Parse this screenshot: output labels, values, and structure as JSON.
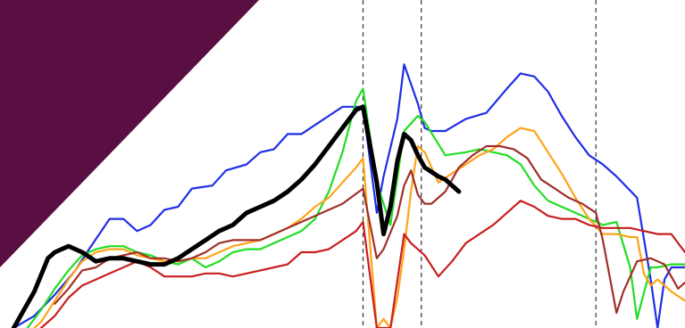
{
  "colors": {
    "background": "#ffffff",
    "corner": "#5a0f42",
    "guide": "#444444"
  },
  "chart_data": {
    "type": "line",
    "title": "",
    "xlabel": "",
    "ylabel": "",
    "grid": false,
    "legend": "none",
    "xlim": [
      0,
      100
    ],
    "ylim": [
      0,
      100
    ],
    "vlines": [
      53,
      61.5,
      87
    ],
    "series": [
      {
        "color": "#1f2ee6",
        "width": 2.2,
        "points": [
          [
            2,
            0
          ],
          [
            5,
            4
          ],
          [
            8,
            11
          ],
          [
            11,
            19
          ],
          [
            13,
            26
          ],
          [
            16,
            36
          ],
          [
            18,
            36
          ],
          [
            20,
            32
          ],
          [
            22,
            34
          ],
          [
            24,
            39
          ],
          [
            26,
            40
          ],
          [
            28,
            46
          ],
          [
            31,
            47
          ],
          [
            33,
            52
          ],
          [
            36,
            54
          ],
          [
            38,
            58
          ],
          [
            40,
            59
          ],
          [
            42,
            64
          ],
          [
            44,
            64
          ],
          [
            46,
            67
          ],
          [
            48,
            70
          ],
          [
            50,
            73
          ],
          [
            52,
            73
          ],
          [
            53,
            73
          ],
          [
            55,
            38
          ],
          [
            56,
            50
          ],
          [
            58,
            69
          ],
          [
            59,
            87
          ],
          [
            61,
            74
          ],
          [
            62,
            66
          ],
          [
            63,
            65
          ],
          [
            65,
            65
          ],
          [
            68,
            69
          ],
          [
            71,
            71
          ],
          [
            74,
            79
          ],
          [
            76,
            84
          ],
          [
            78,
            83
          ],
          [
            80,
            78
          ],
          [
            82,
            70
          ],
          [
            84,
            63
          ],
          [
            86,
            57
          ],
          [
            88,
            54
          ],
          [
            90,
            50
          ],
          [
            93,
            43
          ],
          [
            95,
            16
          ],
          [
            96,
            0
          ],
          [
            97,
            16
          ],
          [
            98,
            20
          ],
          [
            100,
            20
          ]
        ]
      },
      {
        "color": "#22dd22",
        "width": 2.2,
        "points": [
          [
            4,
            0
          ],
          [
            6,
            6
          ],
          [
            8,
            13
          ],
          [
            10,
            19
          ],
          [
            12,
            24
          ],
          [
            14,
            26
          ],
          [
            16,
            27
          ],
          [
            18,
            27
          ],
          [
            20,
            25
          ],
          [
            22,
            24
          ],
          [
            24,
            22
          ],
          [
            26,
            21
          ],
          [
            28,
            23
          ],
          [
            30,
            20
          ],
          [
            32,
            22
          ],
          [
            34,
            25
          ],
          [
            36,
            26
          ],
          [
            38,
            26
          ],
          [
            40,
            28
          ],
          [
            42,
            30
          ],
          [
            44,
            32
          ],
          [
            46,
            36
          ],
          [
            48,
            45
          ],
          [
            50,
            58
          ],
          [
            52,
            75
          ],
          [
            53,
            79
          ],
          [
            55,
            48
          ],
          [
            57,
            34
          ],
          [
            59,
            65
          ],
          [
            61,
            70
          ],
          [
            62,
            68
          ],
          [
            65,
            57
          ],
          [
            68,
            58
          ],
          [
            70,
            59
          ],
          [
            72,
            58
          ],
          [
            74,
            57
          ],
          [
            76,
            54
          ],
          [
            78,
            47
          ],
          [
            80,
            42
          ],
          [
            82,
            40
          ],
          [
            84,
            38
          ],
          [
            86,
            36
          ],
          [
            88,
            34
          ],
          [
            90,
            35
          ],
          [
            92,
            20
          ],
          [
            93,
            3
          ],
          [
            95,
            20
          ],
          [
            96,
            20
          ],
          [
            98,
            21
          ],
          [
            100,
            21
          ]
        ]
      },
      {
        "color": "#ffa319",
        "width": 2.2,
        "points": [
          [
            5,
            0
          ],
          [
            6,
            2
          ],
          [
            8,
            9
          ],
          [
            10,
            16
          ],
          [
            12,
            22
          ],
          [
            14,
            25
          ],
          [
            16,
            26
          ],
          [
            18,
            26
          ],
          [
            20,
            24
          ],
          [
            22,
            23
          ],
          [
            24,
            22
          ],
          [
            26,
            22
          ],
          [
            28,
            23
          ],
          [
            30,
            23
          ],
          [
            32,
            25
          ],
          [
            34,
            27
          ],
          [
            36,
            28
          ],
          [
            38,
            29
          ],
          [
            40,
            31
          ],
          [
            42,
            33
          ],
          [
            44,
            36
          ],
          [
            46,
            40
          ],
          [
            48,
            43
          ],
          [
            50,
            48
          ],
          [
            52,
            53
          ],
          [
            53,
            56
          ],
          [
            55,
            0
          ],
          [
            56,
            3
          ],
          [
            57,
            0
          ],
          [
            58,
            10
          ],
          [
            59,
            26
          ],
          [
            60,
            45
          ],
          [
            61,
            60
          ],
          [
            62,
            58
          ],
          [
            63,
            53
          ],
          [
            64,
            48
          ],
          [
            66,
            51
          ],
          [
            68,
            54
          ],
          [
            70,
            57
          ],
          [
            72,
            59
          ],
          [
            74,
            63
          ],
          [
            76,
            66
          ],
          [
            78,
            65
          ],
          [
            80,
            58
          ],
          [
            82,
            51
          ],
          [
            84,
            43
          ],
          [
            86,
            36
          ],
          [
            88,
            31
          ],
          [
            90,
            31
          ],
          [
            92,
            30
          ],
          [
            93,
            30
          ],
          [
            94,
            18
          ],
          [
            95,
            14
          ],
          [
            96,
            16
          ],
          [
            98,
            12
          ],
          [
            100,
            9
          ]
        ]
      },
      {
        "color": "#c81e1e",
        "width": 2.2,
        "points": [
          [
            6,
            0
          ],
          [
            8,
            4
          ],
          [
            10,
            10
          ],
          [
            12,
            14
          ],
          [
            14,
            16
          ],
          [
            16,
            18
          ],
          [
            18,
            20
          ],
          [
            20,
            22
          ],
          [
            22,
            20
          ],
          [
            24,
            17
          ],
          [
            26,
            17
          ],
          [
            28,
            17
          ],
          [
            30,
            18
          ],
          [
            32,
            18
          ],
          [
            34,
            17
          ],
          [
            36,
            18
          ],
          [
            38,
            19
          ],
          [
            40,
            20
          ],
          [
            42,
            21
          ],
          [
            44,
            25
          ],
          [
            46,
            25
          ],
          [
            48,
            26
          ],
          [
            50,
            29
          ],
          [
            52,
            32
          ],
          [
            53,
            35
          ],
          [
            55,
            0
          ],
          [
            57,
            0
          ],
          [
            59,
            31
          ],
          [
            60,
            28
          ],
          [
            62,
            24
          ],
          [
            64,
            17
          ],
          [
            66,
            22
          ],
          [
            68,
            28
          ],
          [
            70,
            31
          ],
          [
            72,
            34
          ],
          [
            74,
            38
          ],
          [
            76,
            42
          ],
          [
            78,
            40
          ],
          [
            80,
            37
          ],
          [
            82,
            36
          ],
          [
            84,
            36
          ],
          [
            86,
            34
          ],
          [
            88,
            33
          ],
          [
            90,
            33
          ],
          [
            92,
            33
          ],
          [
            94,
            32
          ],
          [
            96,
            31
          ],
          [
            98,
            31
          ],
          [
            100,
            25
          ]
        ]
      },
      {
        "color": "#a0302a",
        "width": 2.2,
        "points": [
          [
            8,
            8
          ],
          [
            10,
            13
          ],
          [
            12,
            19
          ],
          [
            14,
            20
          ],
          [
            16,
            23
          ],
          [
            18,
            24
          ],
          [
            20,
            25
          ],
          [
            22,
            23
          ],
          [
            24,
            23
          ],
          [
            26,
            22
          ],
          [
            28,
            23
          ],
          [
            30,
            25
          ],
          [
            32,
            28
          ],
          [
            34,
            29
          ],
          [
            36,
            29
          ],
          [
            38,
            29
          ],
          [
            40,
            31
          ],
          [
            42,
            33
          ],
          [
            44,
            35
          ],
          [
            46,
            37
          ],
          [
            48,
            39
          ],
          [
            50,
            41
          ],
          [
            53,
            46
          ],
          [
            55,
            23
          ],
          [
            56,
            26
          ],
          [
            58,
            37
          ],
          [
            59,
            47
          ],
          [
            60,
            52
          ],
          [
            61,
            44
          ],
          [
            62,
            41
          ],
          [
            63,
            41
          ],
          [
            65,
            45
          ],
          [
            67,
            53
          ],
          [
            69,
            57
          ],
          [
            71,
            60
          ],
          [
            73,
            60
          ],
          [
            75,
            59
          ],
          [
            77,
            56
          ],
          [
            79,
            49
          ],
          [
            81,
            46
          ],
          [
            83,
            43
          ],
          [
            85,
            41
          ],
          [
            87,
            38
          ],
          [
            88,
            29
          ],
          [
            90,
            5
          ],
          [
            91,
            12
          ],
          [
            93,
            22
          ],
          [
            95,
            23
          ],
          [
            97,
            21
          ],
          [
            99,
            13
          ],
          [
            100,
            15
          ]
        ]
      },
      {
        "color": "#000000",
        "width": 5,
        "points": [
          [
            2,
            0
          ],
          [
            5,
            12
          ],
          [
            7,
            23
          ],
          [
            8,
            25
          ],
          [
            10,
            27
          ],
          [
            12,
            25
          ],
          [
            14,
            22
          ],
          [
            16,
            23
          ],
          [
            18,
            23
          ],
          [
            20,
            22
          ],
          [
            22,
            21
          ],
          [
            24,
            21
          ],
          [
            26,
            23
          ],
          [
            28,
            26
          ],
          [
            30,
            29
          ],
          [
            32,
            32
          ],
          [
            34,
            34
          ],
          [
            36,
            38
          ],
          [
            38,
            40
          ],
          [
            40,
            42
          ],
          [
            42,
            45
          ],
          [
            44,
            49
          ],
          [
            46,
            54
          ],
          [
            48,
            60
          ],
          [
            50,
            66
          ],
          [
            52,
            72
          ],
          [
            53,
            73
          ],
          [
            55,
            48
          ],
          [
            56,
            31
          ],
          [
            57,
            40
          ],
          [
            58,
            55
          ],
          [
            59,
            64
          ],
          [
            60,
            62
          ],
          [
            61,
            57
          ],
          [
            62,
            53
          ],
          [
            64,
            50
          ],
          [
            65,
            49
          ],
          [
            67,
            45
          ]
        ]
      }
    ]
  }
}
